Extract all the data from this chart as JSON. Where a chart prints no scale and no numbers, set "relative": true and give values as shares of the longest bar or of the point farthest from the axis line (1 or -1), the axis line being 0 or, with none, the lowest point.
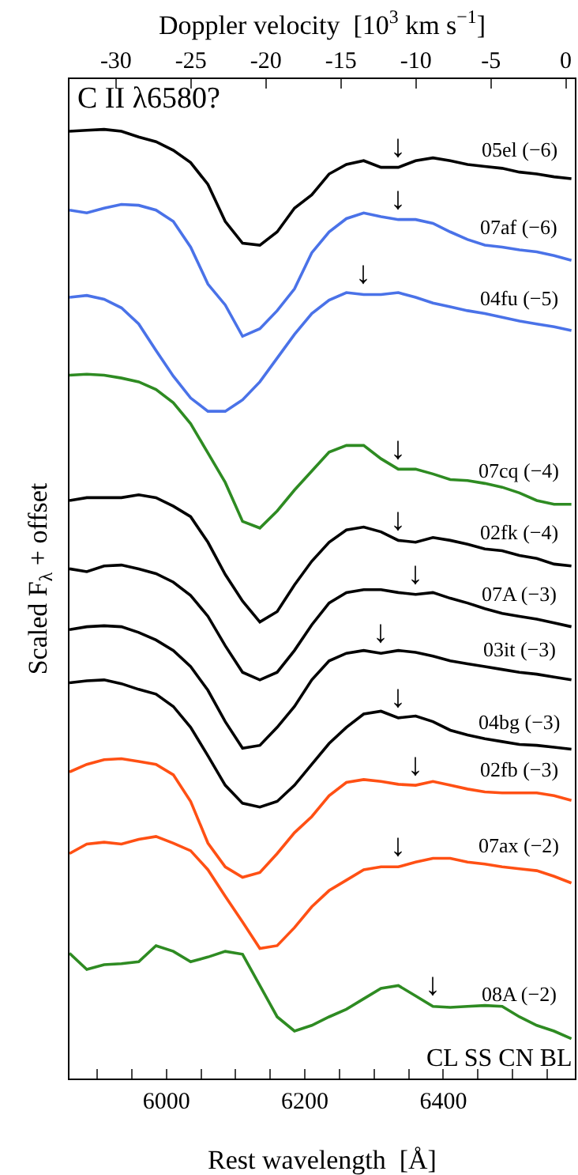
{
  "chart_data": {
    "type": "line",
    "relative": true,
    "title": "C II λ6580?",
    "xlabel": "Rest wavelength  [Å]",
    "ylabel": "Scaled F$_{λ}$ + offset",
    "x2label": "Doppler velocity  [10$^{3}$ km s$^{−1}$]",
    "xlim": [
      5860,
      6590
    ],
    "xticks": [
      {
        "value": 5900,
        "label": null
      },
      {
        "value": 5950,
        "label": null
      },
      6000,
      {
        "value": 6050,
        "label": null
      },
      {
        "value": 6100,
        "label": null
      },
      {
        "value": 6150,
        "label": null
      },
      6200,
      {
        "value": 6250,
        "label": null
      },
      {
        "value": 6300,
        "label": null
      },
      {
        "value": 6350,
        "label": null
      },
      6400,
      {
        "value": 6450,
        "label": null
      },
      {
        "value": 6500,
        "label": null
      },
      {
        "value": 6550,
        "label": null
      }
    ],
    "x2lim": [
      -33.1,
      0.6
    ],
    "x2ticks": [
      {
        "value": -30,
        "label": "-30"
      },
      {
        "value": -25,
        "label": "-25"
      },
      {
        "value": -20,
        "label": "-20"
      },
      {
        "value": -15,
        "label": "-15"
      },
      {
        "value": -10,
        "label": "-10"
      },
      {
        "value": -5,
        "label": "-5"
      },
      0
    ],
    "x": [
      5860,
      5885,
      5910,
      5935,
      5960,
      5985,
      6010,
      6035,
      6060,
      6085,
      6110,
      6135,
      6160,
      6185,
      6210,
      6235,
      6260,
      6285,
      6310,
      6335,
      6360,
      6385,
      6410,
      6435,
      6460,
      6485,
      6510,
      6535,
      6560,
      6585
    ],
    "legend": false,
    "grid": false,
    "marker": "none",
    "line_style": "solid",
    "series": [
      {
        "name": "05el (−6)",
        "color": "#000000",
        "values": [
          0.998,
          0.999,
          1.0,
          0.998,
          0.992,
          0.987,
          0.978,
          0.965,
          0.942,
          0.903,
          0.88,
          0.878,
          0.892,
          0.917,
          0.931,
          0.953,
          0.963,
          0.967,
          0.96,
          0.96,
          0.967,
          0.97,
          0.967,
          0.963,
          0.961,
          0.959,
          0.955,
          0.953,
          0.95,
          0.948
        ]
      },
      {
        "name": "07af (−6)",
        "color": "#4a72e8",
        "values": [
          0.915,
          0.912,
          0.917,
          0.921,
          0.92,
          0.915,
          0.903,
          0.876,
          0.837,
          0.815,
          0.782,
          0.79,
          0.809,
          0.832,
          0.87,
          0.892,
          0.906,
          0.912,
          0.908,
          0.905,
          0.905,
          0.901,
          0.892,
          0.884,
          0.878,
          0.876,
          0.873,
          0.871,
          0.867,
          0.862
        ]
      },
      {
        "name": "04fu (−5)",
        "color": "#4a72e8",
        "values": [
          0.823,
          0.825,
          0.821,
          0.812,
          0.795,
          0.767,
          0.74,
          0.717,
          0.703,
          0.703,
          0.715,
          0.734,
          0.759,
          0.784,
          0.806,
          0.82,
          0.828,
          0.826,
          0.826,
          0.828,
          0.823,
          0.817,
          0.813,
          0.809,
          0.806,
          0.802,
          0.798,
          0.795,
          0.792,
          0.788
        ]
      },
      {
        "name": "07cq (−4)",
        "color": "#2e8b22",
        "values": [
          0.741,
          0.742,
          0.741,
          0.738,
          0.734,
          0.726,
          0.712,
          0.69,
          0.659,
          0.628,
          0.587,
          0.58,
          0.598,
          0.62,
          0.64,
          0.66,
          0.667,
          0.667,
          0.653,
          0.642,
          0.642,
          0.637,
          0.631,
          0.63,
          0.627,
          0.623,
          0.617,
          0.609,
          0.605,
          0.605
        ]
      },
      {
        "name": "02fk (−4)",
        "color": "#000000",
        "values": [
          0.609,
          0.612,
          0.612,
          0.612,
          0.615,
          0.612,
          0.603,
          0.592,
          0.565,
          0.531,
          0.503,
          0.481,
          0.492,
          0.52,
          0.545,
          0.565,
          0.578,
          0.581,
          0.576,
          0.567,
          0.565,
          0.57,
          0.567,
          0.563,
          0.558,
          0.556,
          0.551,
          0.548,
          0.542,
          0.54
        ]
      },
      {
        "name": "07A (−3)",
        "color": "#000000",
        "values": [
          0.537,
          0.534,
          0.54,
          0.541,
          0.537,
          0.532,
          0.523,
          0.509,
          0.487,
          0.456,
          0.428,
          0.42,
          0.428,
          0.451,
          0.478,
          0.501,
          0.512,
          0.515,
          0.515,
          0.512,
          0.51,
          0.512,
          0.506,
          0.501,
          0.495,
          0.49,
          0.487,
          0.484,
          0.48,
          0.476
        ]
      },
      {
        "name": "03it (−3)",
        "color": "#000000",
        "values": [
          0.473,
          0.476,
          0.477,
          0.476,
          0.47,
          0.462,
          0.451,
          0.434,
          0.409,
          0.376,
          0.348,
          0.351,
          0.37,
          0.392,
          0.42,
          0.44,
          0.448,
          0.451,
          0.448,
          0.451,
          0.449,
          0.445,
          0.44,
          0.437,
          0.434,
          0.431,
          0.428,
          0.426,
          0.423,
          0.42
        ]
      },
      {
        "name": "04bg (−3)",
        "color": "#000000",
        "values": [
          0.417,
          0.419,
          0.42,
          0.416,
          0.41,
          0.405,
          0.392,
          0.37,
          0.34,
          0.309,
          0.29,
          0.286,
          0.292,
          0.309,
          0.331,
          0.353,
          0.37,
          0.384,
          0.387,
          0.38,
          0.382,
          0.376,
          0.367,
          0.362,
          0.358,
          0.355,
          0.352,
          0.351,
          0.349,
          0.347
        ]
      },
      {
        "name": "02fb (−3)",
        "color": "#ff5014",
        "values": [
          0.323,
          0.331,
          0.336,
          0.337,
          0.334,
          0.331,
          0.32,
          0.292,
          0.248,
          0.223,
          0.212,
          0.217,
          0.237,
          0.259,
          0.276,
          0.298,
          0.312,
          0.315,
          0.313,
          0.31,
          0.309,
          0.313,
          0.309,
          0.305,
          0.302,
          0.301,
          0.301,
          0.301,
          0.298,
          0.293
        ]
      },
      {
        "name": "07ax (−2)",
        "color": "#ff5014",
        "values": [
          0.237,
          0.247,
          0.249,
          0.247,
          0.252,
          0.255,
          0.248,
          0.24,
          0.22,
          0.192,
          0.165,
          0.137,
          0.14,
          0.159,
          0.181,
          0.198,
          0.209,
          0.22,
          0.223,
          0.223,
          0.228,
          0.232,
          0.232,
          0.228,
          0.226,
          0.223,
          0.221,
          0.219,
          0.213,
          0.206
        ]
      },
      {
        "name": "08A (−2)",
        "color": "#2e8b22",
        "values": [
          0.132,
          0.115,
          0.12,
          0.121,
          0.123,
          0.14,
          0.134,
          0.123,
          0.128,
          0.134,
          0.131,
          0.098,
          0.065,
          0.05,
          0.056,
          0.065,
          0.073,
          0.084,
          0.095,
          0.098,
          0.087,
          0.076,
          0.075,
          0.076,
          0.077,
          0.076,
          0.065,
          0.056,
          0.05,
          0.042
        ]
      }
    ],
    "annotations": [
      {
        "text": "↓",
        "x": 6335,
        "y": 0.96
      },
      {
        "text": "↓",
        "x": 6335,
        "y": 0.905
      },
      {
        "text": "↓",
        "x": 6285,
        "y": 0.826
      },
      {
        "text": "↓",
        "x": 6335,
        "y": 0.642
      },
      {
        "text": "↓",
        "x": 6335,
        "y": 0.567
      },
      {
        "text": "↓",
        "x": 6360,
        "y": 0.51
      },
      {
        "text": "↓",
        "x": 6310,
        "y": 0.448
      },
      {
        "text": "↓",
        "x": 6335,
        "y": 0.38
      },
      {
        "text": "↓",
        "x": 6360,
        "y": 0.309
      },
      {
        "text": "↓",
        "x": 6335,
        "y": 0.223
      },
      {
        "text": "↓",
        "x": 6385,
        "y": 0.076
      },
      "CL",
      "SS",
      "CN",
      "BL"
    ]
  }
}
